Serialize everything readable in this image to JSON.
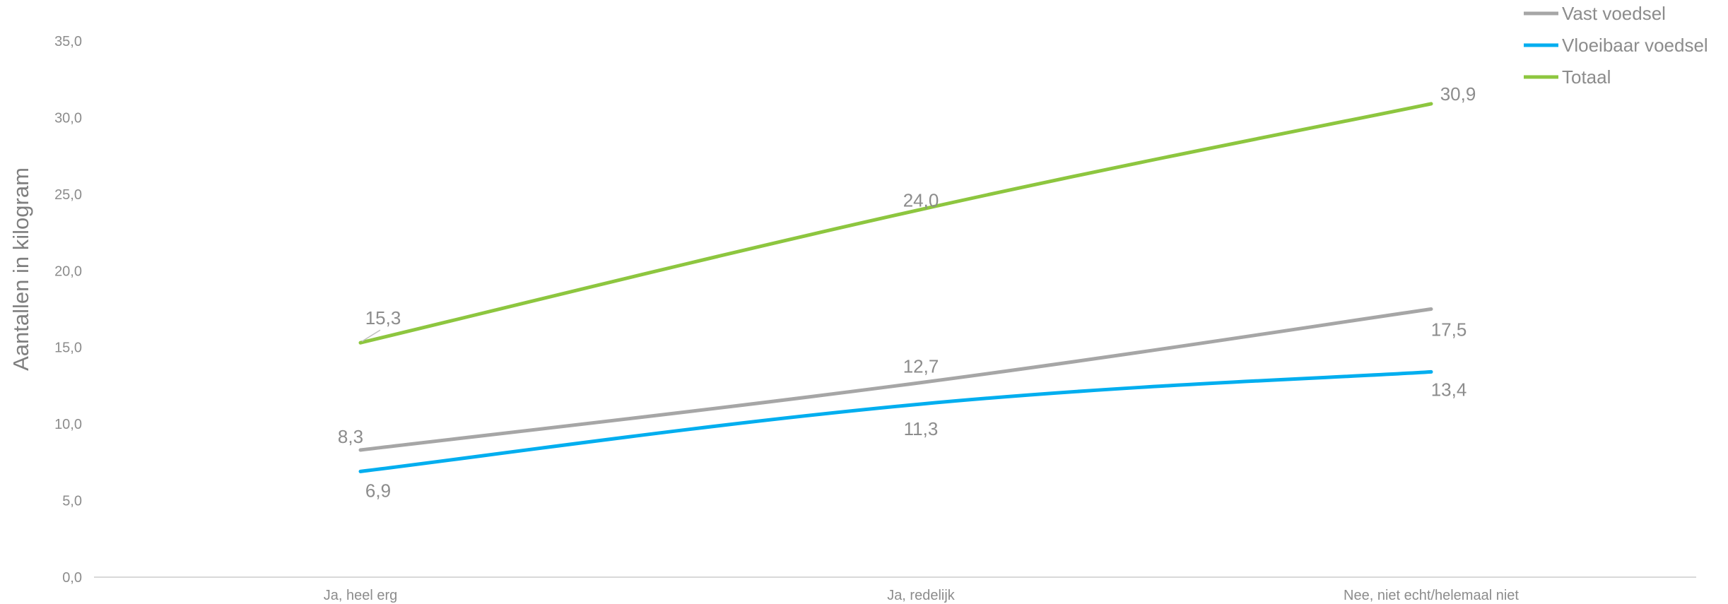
{
  "chart_data": {
    "type": "line",
    "ylabel": "Aantallen in kilogram",
    "xlabel": "",
    "categories": [
      "Ja, heel erg",
      "Ja, redelijk",
      "Nee, niet echt/helemaal niet"
    ],
    "yticks": [
      "0,0",
      "5,0",
      "10,0",
      "15,0",
      "20,0",
      "25,0",
      "30,0",
      "35,0"
    ],
    "ylim": [
      0,
      35
    ],
    "grid": false,
    "legend_position": "top-right",
    "series": [
      {
        "name": "Vast voedsel",
        "color": "#a6a6a6",
        "values": [
          8.3,
          12.7,
          17.5
        ],
        "labels": [
          "8,3",
          "12,7",
          "17,5"
        ]
      },
      {
        "name": "Vloeibaar voedsel",
        "color": "#00aeef",
        "values": [
          6.9,
          11.3,
          13.4
        ],
        "labels": [
          "6,9",
          "11,3",
          "13,4"
        ]
      },
      {
        "name": "Totaal",
        "color": "#8dc63f",
        "values": [
          15.3,
          24.0,
          30.9
        ],
        "labels": [
          "15,3",
          "24,0",
          "30,9"
        ]
      }
    ]
  }
}
